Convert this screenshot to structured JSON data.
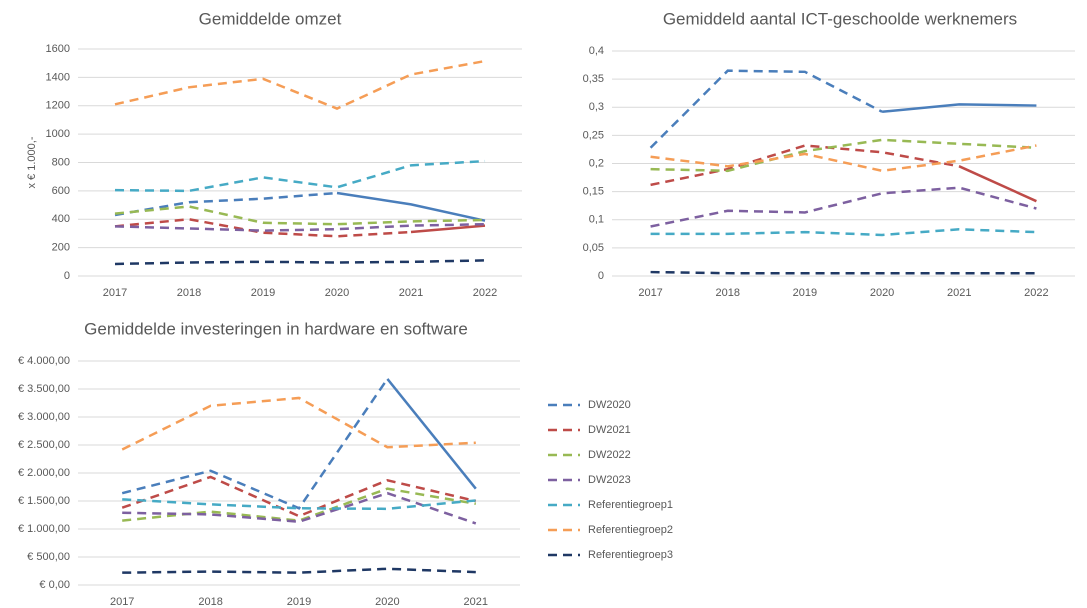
{
  "chart_data": [
    {
      "type": "line",
      "title": "Gemiddelde omzet",
      "y_label": "x € 1.000,-",
      "categories": [
        "2017",
        "2018",
        "2019",
        "2020",
        "2021",
        "2022"
      ],
      "ylim": [
        0,
        1600
      ],
      "yticks": [
        0,
        200,
        400,
        600,
        800,
        1000,
        1200,
        1400,
        1600
      ],
      "grid": true,
      "series": [
        {
          "name": "DW2020",
          "color": "#4a7ebb",
          "values": [
            430,
            520,
            545,
            585,
            505,
            390
          ],
          "solid_from": 3
        },
        {
          "name": "DW2021",
          "color": "#be4b48",
          "values": [
            350,
            400,
            305,
            280,
            310,
            355
          ],
          "solid_from": 4
        },
        {
          "name": "DW2022",
          "color": "#98b954",
          "values": [
            440,
            490,
            375,
            365,
            385,
            395
          ]
        },
        {
          "name": "DW2023",
          "color": "#7d60a0",
          "values": [
            350,
            335,
            320,
            330,
            355,
            365
          ]
        },
        {
          "name": "Referentiegroep1",
          "color": "#46aac5",
          "values": [
            605,
            600,
            695,
            625,
            780,
            810
          ]
        },
        {
          "name": "Referentiegroep2",
          "color": "#f59d56",
          "values": [
            1210,
            1330,
            1390,
            1180,
            1420,
            1515
          ]
        },
        {
          "name": "Referentiegroep3",
          "color": "#1f3864",
          "values": [
            85,
            95,
            100,
            95,
            100,
            110
          ]
        }
      ]
    },
    {
      "type": "line",
      "title": "Gemiddeld aantal ICT-geschoolde werknemers",
      "categories": [
        "2017",
        "2018",
        "2019",
        "2020",
        "2021",
        "2022"
      ],
      "ylim": [
        0,
        0.4
      ],
      "yticks": [
        0,
        {
          "value": 0.05,
          "label": "0,05"
        },
        {
          "value": 0.1,
          "label": "0,1"
        },
        {
          "value": 0.15,
          "label": "0,15"
        },
        {
          "value": 0.2,
          "label": "0,2"
        },
        {
          "value": 0.25,
          "label": "0,25"
        },
        {
          "value": 0.3,
          "label": "0,3"
        },
        {
          "value": 0.35,
          "label": "0,35"
        },
        {
          "value": 0.4,
          "label": "0,4"
        }
      ],
      "grid": true,
      "series": [
        {
          "name": "DW2020",
          "color": "#4a7ebb",
          "values": [
            0.228,
            0.365,
            0.363,
            0.292,
            0.305,
            0.303
          ],
          "solid_from": 3
        },
        {
          "name": "DW2021",
          "color": "#be4b48",
          "values": [
            0.162,
            0.19,
            0.232,
            0.22,
            0.195,
            0.133
          ],
          "solid_from": 4
        },
        {
          "name": "DW2022",
          "color": "#98b954",
          "values": [
            0.19,
            0.187,
            0.222,
            0.242,
            0.235,
            0.228
          ]
        },
        {
          "name": "DW2023",
          "color": "#7d60a0",
          "values": [
            0.088,
            0.116,
            0.113,
            0.147,
            0.157,
            0.12
          ]
        },
        {
          "name": "Referentiegroep1",
          "color": "#46aac5",
          "values": [
            0.075,
            0.075,
            0.078,
            0.073,
            0.083,
            0.078
          ]
        },
        {
          "name": "Referentiegroep2",
          "color": "#f59d56",
          "values": [
            0.212,
            0.195,
            0.217,
            0.187,
            0.205,
            0.232
          ]
        },
        {
          "name": "Referentiegroep3",
          "color": "#1f3864",
          "values": [
            0.007,
            0.005,
            0.005,
            0.005,
            0.005,
            0.005
          ]
        }
      ]
    },
    {
      "type": "line",
      "title": "Gemiddelde investeringen in hardware en software",
      "categories": [
        "2017",
        "2018",
        "2019",
        "2020",
        "2021"
      ],
      "ylim": [
        0,
        4000
      ],
      "yticks": [
        {
          "value": 0,
          "label": "€ 0,00"
        },
        {
          "value": 500,
          "label": "€ 500,00"
        },
        {
          "value": 1000,
          "label": "€ 1.000,00"
        },
        {
          "value": 1500,
          "label": "€ 1.500,00"
        },
        {
          "value": 2000,
          "label": "€ 2.000,00"
        },
        {
          "value": 2500,
          "label": "€ 2.500,00"
        },
        {
          "value": 3000,
          "label": "€ 3.000,00"
        },
        {
          "value": 3500,
          "label": "€ 3.500,00"
        },
        {
          "value": 4000,
          "label": "€ 4.000,00"
        }
      ],
      "grid": true,
      "legend": "right",
      "series": [
        {
          "name": "DW2020",
          "color": "#4a7ebb",
          "values": [
            1640,
            2040,
            1370,
            3680,
            1720
          ],
          "solid_from": 3
        },
        {
          "name": "DW2021",
          "color": "#be4b48",
          "values": [
            1380,
            1930,
            1230,
            1870,
            1500
          ]
        },
        {
          "name": "DW2022",
          "color": "#98b954",
          "values": [
            1150,
            1310,
            1150,
            1720,
            1450
          ]
        },
        {
          "name": "DW2023",
          "color": "#7d60a0",
          "values": [
            1290,
            1260,
            1130,
            1640,
            1100
          ]
        },
        {
          "name": "Referentiegroep1",
          "color": "#46aac5",
          "values": [
            1530,
            1440,
            1370,
            1360,
            1510
          ]
        },
        {
          "name": "Referentiegroep2",
          "color": "#f59d56",
          "values": [
            2420,
            3200,
            3340,
            2460,
            2540
          ]
        },
        {
          "name": "Referentiegroep3",
          "color": "#1f3864",
          "values": [
            220,
            240,
            220,
            290,
            230
          ]
        }
      ]
    }
  ]
}
